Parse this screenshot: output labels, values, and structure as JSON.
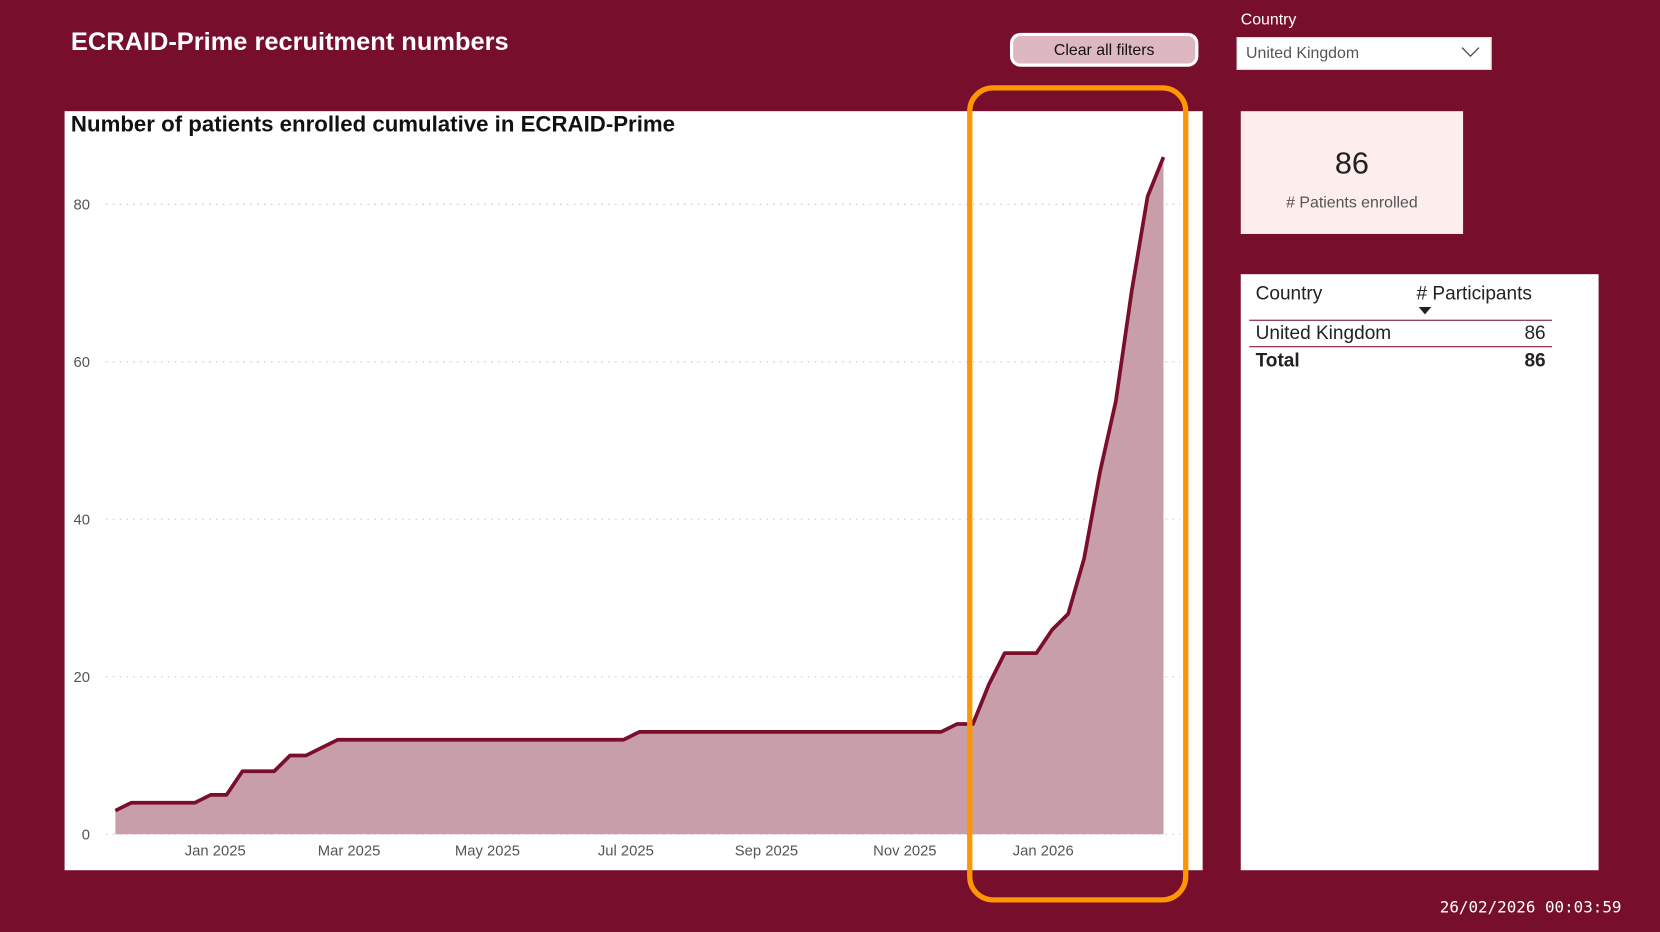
{
  "header": {
    "title": "ECRAID-Prime recruitment numbers",
    "clear_filters_label": "Clear all filters"
  },
  "filter": {
    "label": "Country",
    "selected": "United Kingdom",
    "icon": "chevron-down-icon"
  },
  "kpi": {
    "value": "86",
    "label": "# Patients enrolled"
  },
  "table": {
    "headers": [
      "Country",
      "# Participants"
    ],
    "sort": "descending",
    "rows": [
      {
        "country": "United Kingdom",
        "participants": "86"
      }
    ],
    "total": {
      "label": "Total",
      "value": "86"
    }
  },
  "timestamp": "26/02/2026 00:03:59",
  "colors": {
    "background": "#770F2C",
    "line": "#7A0E2C",
    "area": "#C89EA8",
    "highlight": "#FF9500"
  },
  "chart_data": {
    "type": "area",
    "title": "Number of patients enrolled cumulative in ECRAID-Prime",
    "xlabel": "",
    "ylabel": "",
    "ylim": [
      0,
      86
    ],
    "yticks": [
      "0",
      "20",
      "40",
      "60",
      "80"
    ],
    "xticks": [
      {
        "date": "2025-01-01",
        "label": "Jan 2025"
      },
      {
        "date": "2025-03-01",
        "label": "Mar 2025"
      },
      {
        "date": "2025-05-01",
        "label": "May 2025"
      },
      {
        "date": "2025-07-01",
        "label": "Jul 2025"
      },
      {
        "date": "2025-09-01",
        "label": "Sep 2025"
      },
      {
        "date": "2025-11-01",
        "label": "Nov 2025"
      },
      {
        "date": "2026-01-01",
        "label": "Jan 2026"
      }
    ],
    "grid": "horizontal dotted",
    "highlight": {
      "from": "2025-12-01",
      "to": "2026-02-23",
      "color": "#FF9500"
    },
    "points": [
      [
        "2024-11-18",
        3
      ],
      [
        "2024-11-25",
        4
      ],
      [
        "2024-12-23",
        4
      ],
      [
        "2024-12-30",
        5
      ],
      [
        "2025-01-06",
        5
      ],
      [
        "2025-01-13",
        8
      ],
      [
        "2025-01-27",
        8
      ],
      [
        "2025-02-03",
        10
      ],
      [
        "2025-02-10",
        10
      ],
      [
        "2025-02-24",
        12
      ],
      [
        "2025-06-30",
        12
      ],
      [
        "2025-07-07",
        13
      ],
      [
        "2025-11-17",
        13
      ],
      [
        "2025-11-24",
        14
      ],
      [
        "2025-12-01",
        14
      ],
      [
        "2025-12-08",
        19
      ],
      [
        "2025-12-15",
        23
      ],
      [
        "2025-12-29",
        23
      ],
      [
        "2026-01-05",
        26
      ],
      [
        "2026-01-12",
        28
      ],
      [
        "2026-01-19",
        35
      ],
      [
        "2026-01-26",
        46
      ],
      [
        "2026-02-02",
        55
      ],
      [
        "2026-02-09",
        69
      ],
      [
        "2026-02-16",
        81
      ],
      [
        "2026-02-23",
        86
      ]
    ]
  }
}
